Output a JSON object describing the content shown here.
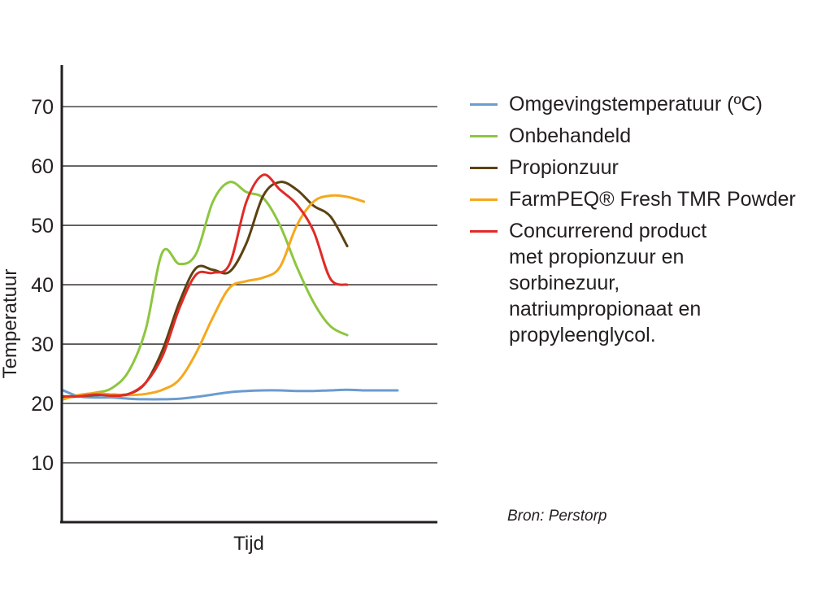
{
  "chart_data": {
    "type": "line",
    "xlabel": "Tijd",
    "ylabel": "Temperatuur",
    "ylim": [
      0,
      77
    ],
    "yticks": [
      10,
      20,
      30,
      40,
      50,
      60,
      70
    ],
    "grid": true,
    "legend_placement": "right",
    "x": [
      0,
      0.5,
      1,
      1.5,
      2,
      2.5,
      3,
      3.5,
      4,
      4.5,
      5,
      5.5,
      6,
      6.5,
      7,
      7.5,
      8,
      8.5,
      9,
      9.5,
      10
    ],
    "series": [
      {
        "name": "Omgevingstemperatuur (ºC)",
        "color": "#6a9ccf",
        "values": [
          22.3,
          21.2,
          21.0,
          21.0,
          20.8,
          20.7,
          20.7,
          20.8,
          21.1,
          21.5,
          21.9,
          22.1,
          22.2,
          22.2,
          22.1,
          22.1,
          22.2,
          22.3,
          22.2,
          22.2,
          22.2
        ]
      },
      {
        "name": "Onbehandeld",
        "color": "#8dc63f",
        "values": [
          20.8,
          21.4,
          21.8,
          22.6,
          25.5,
          32.5,
          45.5,
          43.5,
          45.2,
          54.0,
          57.3,
          55.6,
          54.6,
          50.0,
          43.0,
          37.0,
          33.0,
          31.5,
          null,
          null,
          null
        ]
      },
      {
        "name": "Propionzuur",
        "color": "#5c4212",
        "values": [
          21.0,
          21.2,
          21.4,
          21.5,
          21.6,
          23.5,
          29.0,
          37.0,
          42.8,
          42.5,
          42.2,
          47.0,
          55.0,
          57.3,
          56.0,
          53.3,
          51.5,
          46.5,
          null,
          null,
          null
        ]
      },
      {
        "name": "FarmPEQ® Fresh TMR Powder",
        "color": "#f5a81c",
        "values": [
          20.6,
          21.4,
          21.7,
          21.5,
          21.4,
          21.6,
          22.3,
          24.0,
          28.5,
          34.5,
          39.5,
          40.6,
          41.2,
          43.0,
          50.0,
          54.0,
          55.0,
          54.8,
          54.0,
          null,
          null
        ]
      },
      {
        "name": "Concurrerend product met propionzuur en sorbinezuur, natriumpropionaat en propyleenglycol.",
        "color": "#e02b27",
        "values": [
          21.2,
          21.2,
          21.5,
          21.3,
          21.6,
          23.5,
          28.0,
          36.0,
          41.7,
          42.0,
          43.5,
          54.0,
          58.5,
          56.0,
          53.5,
          49.0,
          41.0,
          40.0,
          null,
          null,
          null
        ]
      }
    ]
  },
  "legend": {
    "items": [
      {
        "lines": [
          "Omgevingstemperatuur (ºC)"
        ],
        "color": "#6a9ccf"
      },
      {
        "lines": [
          "Onbehandeld"
        ],
        "color": "#8dc63f"
      },
      {
        "lines": [
          "Propionzuur"
        ],
        "color": "#5c4212"
      },
      {
        "lines": [
          "FarmPEQ® Fresh TMR Powder"
        ],
        "color": "#f5a81c"
      },
      {
        "lines": [
          "Concurrerend product",
          "met propionzuur en",
          "sorbinezuur,",
          "natriumpropionaat en",
          "propyleenglycol."
        ],
        "color": "#e02b27"
      }
    ]
  },
  "source_note": "Bron: Perstorp"
}
